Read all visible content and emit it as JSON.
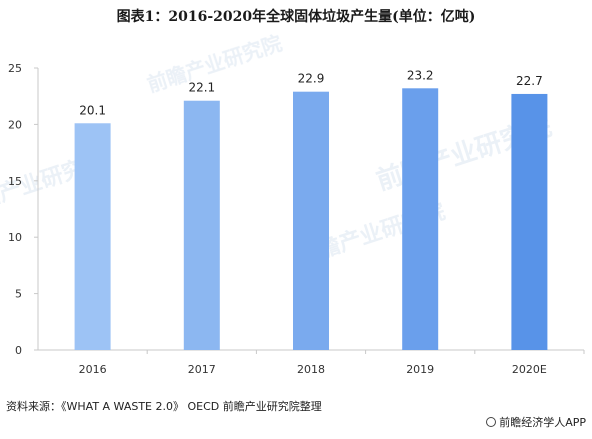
{
  "chart_data": {
    "type": "bar",
    "title": "图表1：2016-2020年全球固体垃圾产生量(单位：亿吨)",
    "categories": [
      "2016",
      "2017",
      "2018",
      "2019",
      "2020E"
    ],
    "values": [
      20.1,
      22.1,
      22.9,
      23.2,
      22.7
    ],
    "value_labels": [
      "20.1",
      "22.1",
      "22.9",
      "23.2",
      "22.7"
    ],
    "ylim": [
      0,
      25
    ],
    "yticks": [
      0,
      5,
      10,
      15,
      20,
      25
    ],
    "grid": false,
    "bar_colors": [
      "#9dc3f5",
      "#8cb7f1",
      "#7aaaee",
      "#6a9fec",
      "#5893e8"
    ]
  },
  "footer": {
    "source": "资料来源：《WHAT A WASTE 2.0》 OECD 前瞻产业研究院整理",
    "app": "前瞻经济学人APP"
  },
  "watermark": {
    "text": "前瞻产业研究院"
  },
  "colors": {
    "axis": "#c8c8c8",
    "tick_text": "#333333",
    "label_text": "#222222"
  }
}
